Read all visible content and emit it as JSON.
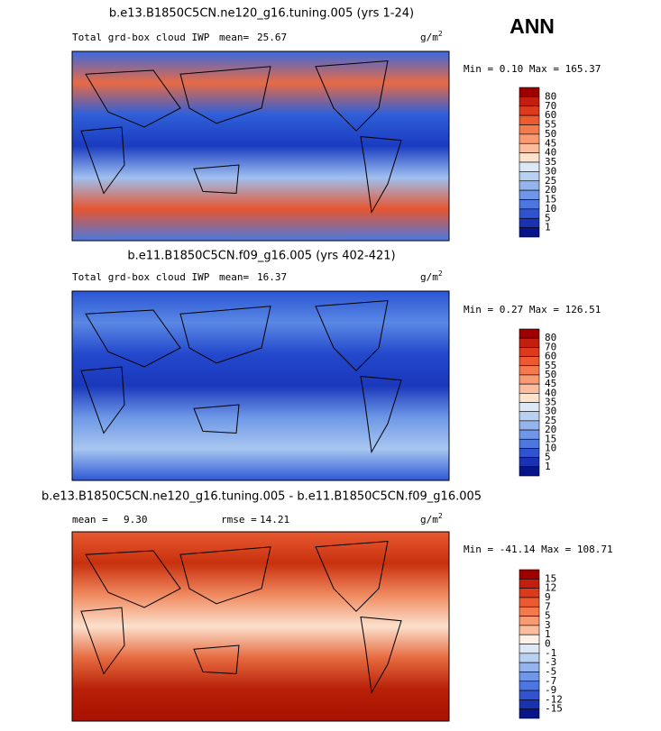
{
  "season": "ANN",
  "panels": [
    {
      "title": "b.e13.B1850C5CN.ne120_g16.tuning.005 (yrs 1-24)",
      "field_label": "Total grd-box cloud IWP",
      "stats": [
        {
          "label": "mean=",
          "value": "25.67"
        }
      ],
      "units": "g/m",
      "units_exp": "2",
      "min_max": "Min =   0.10 Max = 165.37",
      "colorbar": {
        "levels": [
          80,
          70,
          60,
          55,
          50,
          45,
          40,
          35,
          30,
          25,
          20,
          15,
          10,
          5,
          1
        ],
        "colors": [
          "#9e0000",
          "#c41e0e",
          "#dd3a1c",
          "#ee5a30",
          "#f47a4e",
          "#f89a72",
          "#fbbd9e",
          "#fde2cc",
          "#dce8f6",
          "#b8d0f1",
          "#93b4ec",
          "#6f96e7",
          "#4d76df",
          "#3053d0",
          "#1932b2",
          "#07148a"
        ]
      },
      "field_gradient": [
        "#3a6ae0",
        "#e86a44",
        "#2f5fd8",
        "#1a3cc0",
        "#9fc0f0",
        "#e65530",
        "#4a78e0"
      ]
    },
    {
      "title": "b.e11.B1850C5CN.f09_g16.005 (yrs 402-421)",
      "field_label": "Total grd-box cloud IWP",
      "stats": [
        {
          "label": "mean=",
          "value": "16.37"
        }
      ],
      "units": "g/m",
      "units_exp": "2",
      "min_max": "Min =   0.27 Max = 126.51",
      "colorbar": {
        "levels": [
          80,
          70,
          60,
          55,
          50,
          45,
          40,
          35,
          30,
          25,
          20,
          15,
          10,
          5,
          1
        ],
        "colors": [
          "#9e0000",
          "#c41e0e",
          "#dd3a1c",
          "#ee5a30",
          "#f47a4e",
          "#f89a72",
          "#fbbd9e",
          "#fde2cc",
          "#dce8f6",
          "#b8d0f1",
          "#93b4ec",
          "#6f96e7",
          "#4d76df",
          "#3053d0",
          "#1932b2",
          "#07148a"
        ]
      },
      "field_gradient": [
        "#2a55d4",
        "#5a88e4",
        "#2348cc",
        "#1a38bc",
        "#6e98e6",
        "#a8c6f0",
        "#2e58d6"
      ]
    },
    {
      "title": "b.e13.B1850C5CN.ne120_g16.tuning.005 - b.e11.B1850C5CN.f09_g16.005",
      "field_label": null,
      "stats": [
        {
          "label": "mean =",
          "value": "9.30"
        },
        {
          "label": "rmse =",
          "value": "14.21"
        }
      ],
      "units": "g/m",
      "units_exp": "2",
      "min_max": "Min = -41.14 Max = 108.71",
      "colorbar": {
        "levels": [
          15,
          12,
          9,
          7,
          5,
          3,
          1,
          0,
          -1,
          -3,
          -5,
          -7,
          -9,
          -12,
          -15
        ],
        "colors": [
          "#9e0000",
          "#c41e0e",
          "#dd3a1c",
          "#ee5a30",
          "#f47a4e",
          "#f89a72",
          "#fbbd9e",
          "#fdf0e6",
          "#dce8f6",
          "#b8d0f1",
          "#93b4ec",
          "#6f96e7",
          "#4d76df",
          "#3053d0",
          "#1932b2",
          "#07148a"
        ]
      },
      "field_gradient": [
        "#e85a30",
        "#c8300e",
        "#f08a60",
        "#fbe0cc",
        "#e66a40",
        "#b82008",
        "#a81000"
      ]
    }
  ]
}
